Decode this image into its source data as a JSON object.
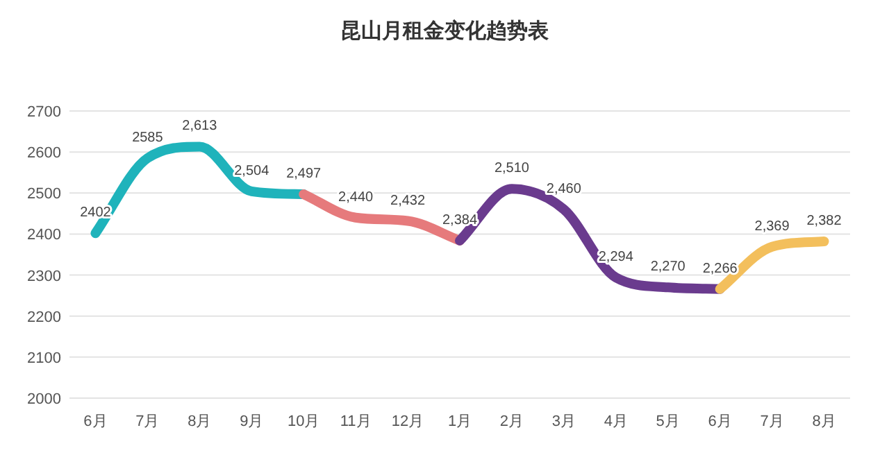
{
  "chart_data": {
    "type": "line",
    "title": "昆山月租金变化趋势表",
    "categories": [
      "6月",
      "7月",
      "8月",
      "9月",
      "10月",
      "11月",
      "12月",
      "1月",
      "2月",
      "3月",
      "4月",
      "5月",
      "6月",
      "7月",
      "8月"
    ],
    "series": [
      {
        "color": "#1fb3bb",
        "values": [
          2402,
          2585,
          2613,
          2504,
          2497,
          null,
          null,
          null,
          null,
          null,
          null,
          null,
          null,
          null,
          null
        ],
        "value_labels": [
          "2402",
          "2585",
          "2,613",
          "2,504",
          "2,497",
          null,
          null,
          null,
          null,
          null,
          null,
          null,
          null,
          null,
          null
        ]
      },
      {
        "color": "#e67a7c",
        "values": [
          null,
          null,
          null,
          null,
          2497,
          2440,
          2432,
          2384,
          null,
          null,
          null,
          null,
          null,
          null,
          null
        ],
        "value_labels": [
          null,
          null,
          null,
          null,
          null,
          "2,440",
          "2,432",
          "2,384",
          null,
          null,
          null,
          null,
          null,
          null,
          null
        ]
      },
      {
        "color": "#6a3b8e",
        "values": [
          null,
          null,
          null,
          null,
          null,
          null,
          null,
          2384,
          2510,
          2460,
          2294,
          2270,
          2266,
          null,
          null
        ],
        "value_labels": [
          null,
          null,
          null,
          null,
          null,
          null,
          null,
          null,
          "2,510",
          "2,460",
          "2,294",
          "2,270",
          null,
          null,
          null
        ]
      },
      {
        "color": "#f3bf5c",
        "values": [
          null,
          null,
          null,
          null,
          null,
          null,
          null,
          null,
          null,
          null,
          null,
          null,
          2266,
          2369,
          2382
        ],
        "value_labels": [
          null,
          null,
          null,
          null,
          null,
          null,
          null,
          null,
          null,
          null,
          null,
          null,
          "2,266",
          "2,369",
          "2,382"
        ]
      }
    ],
    "ylim": [
      2000,
      2700
    ],
    "yticks": [
      2000,
      2100,
      2200,
      2300,
      2400,
      2500,
      2600,
      2700
    ],
    "grid": "y",
    "marker": "none",
    "line_style": "solid"
  }
}
